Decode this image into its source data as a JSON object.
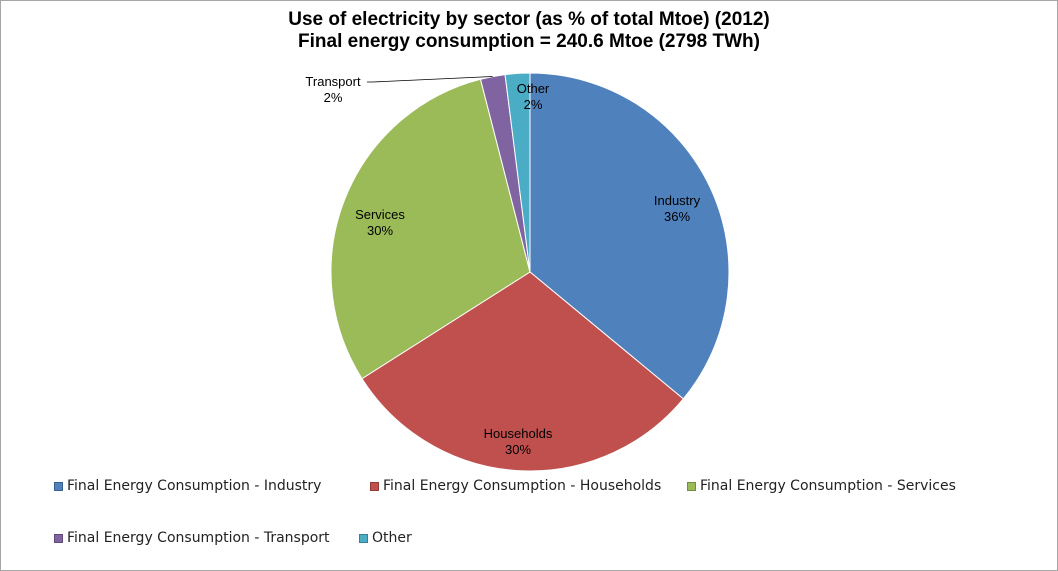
{
  "chart_data": {
    "type": "pie",
    "title": "Use of electricity by sector (as % of total Mtoe) (2012)",
    "subtitle": "Final energy consumption = 240.6 Mtoe (2798 TWh)",
    "slices": [
      {
        "label": "Industry",
        "value": 36,
        "value_label": "36%",
        "legend": "Final Energy Consumption - Industry",
        "color": "#4f81bd"
      },
      {
        "label": "Households",
        "value": 30,
        "value_label": "30%",
        "legend": "Final Energy Consumption - Households",
        "color": "#c0504d"
      },
      {
        "label": "Services",
        "value": 30,
        "value_label": "30%",
        "legend": "Final Energy Consumption - Services",
        "color": "#9bbb59"
      },
      {
        "label": "Transport",
        "value": 2,
        "value_label": "2%",
        "legend": "Final Energy Consumption - Transport",
        "color": "#8064a2"
      },
      {
        "label": "Other",
        "value": 2,
        "value_label": "2%",
        "legend": "Other",
        "color": "#4bacc6"
      }
    ],
    "legend_position": "bottom"
  }
}
